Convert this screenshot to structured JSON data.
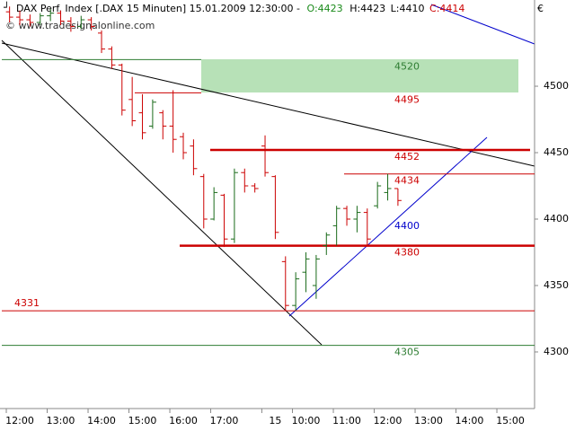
{
  "chart_data": {
    "type": "ohlc",
    "title": "DAX Perf. Index [.DAX  15 Minuten] 15.01.2009 12:30:00 -",
    "quote": {
      "open": "O:4423",
      "high": "H:4423",
      "low": "L:4410",
      "close": "C:4414"
    },
    "watermark": "© www.tradesignalonline.com",
    "currency": "€",
    "x": [
      -1,
      0,
      1,
      2,
      3,
      4,
      5,
      6,
      7,
      8,
      9,
      10,
      11,
      12,
      13,
      14,
      15,
      16,
      17,
      18,
      19,
      20,
      21,
      22,
      23,
      24,
      25,
      26,
      27,
      28,
      29,
      30,
      31,
      32,
      33,
      34,
      35,
      36,
      37
    ],
    "open": [
      4556,
      4552,
      4550,
      4548,
      4553,
      4555,
      4549,
      4545,
      4550,
      4540,
      4528,
      4516,
      4490,
      4480,
      4470,
      4480,
      4470,
      4462,
      4455,
      4432,
      4400,
      4418,
      4385,
      4435,
      4425,
      4455,
      4432,
      4368,
      4335,
      4360,
      4350,
      4380,
      4395,
      4408,
      4400,
      4405,
      4410,
      4420,
      4423
    ],
    "high": [
      4560,
      4557,
      4554,
      4555,
      4558,
      4557,
      4552,
      4553,
      4552,
      4542,
      4530,
      4517,
      4507,
      4494,
      4490,
      4482,
      4497,
      4465,
      4460,
      4434,
      4424,
      4419,
      4438,
      4438,
      4427,
      4463,
      4433,
      4372,
      4360,
      4375,
      4373,
      4390,
      4410,
      4410,
      4410,
      4408,
      4428,
      4434,
      4423
    ],
    "low": [
      4548,
      4546,
      4545,
      4546,
      4549,
      4546,
      4541,
      4543,
      4542,
      4525,
      4513,
      4478,
      4470,
      4460,
      4468,
      4460,
      4450,
      4445,
      4433,
      4393,
      4399,
      4379,
      4382,
      4420,
      4420,
      4432,
      4385,
      4331,
      4331,
      4345,
      4340,
      4373,
      4380,
      4395,
      4390,
      4380,
      4408,
      4414,
      4410
    ],
    "close": [
      4552,
      4550,
      4548,
      4553,
      4555,
      4549,
      4545,
      4550,
      4545,
      4528,
      4516,
      4482,
      4474,
      4465,
      4488,
      4470,
      4460,
      4450,
      4438,
      4400,
      4420,
      4385,
      4435,
      4425,
      4423,
      4435,
      4390,
      4335,
      4355,
      4370,
      4370,
      4388,
      4408,
      4400,
      4405,
      4385,
      4425,
      4423,
      4414
    ],
    "up_color": "#1a6b1a",
    "down_color": "#cc0000",
    "xlim": [
      -1.76,
      50.37
    ],
    "xticks": [
      {
        "value": 0,
        "label": "12:00"
      },
      {
        "value": 4,
        "label": "13:00"
      },
      {
        "value": 8,
        "label": "14:00"
      },
      {
        "value": 12,
        "label": "15:00"
      },
      {
        "value": 16,
        "label": "16:00"
      },
      {
        "value": 20,
        "label": "17:00"
      },
      {
        "value": 25,
        "label": "15"
      },
      {
        "value": 28,
        "label": "10:00"
      },
      {
        "value": 32,
        "label": "11:00"
      },
      {
        "value": 36,
        "label": "12:00"
      },
      {
        "value": 40,
        "label": "13:00"
      },
      {
        "value": 44,
        "label": "14:00"
      },
      {
        "value": 48,
        "label": "15:00"
      }
    ],
    "ylim": [
      4257.4,
      4564.9
    ],
    "yticks": [
      4300,
      4350,
      4400,
      4450,
      4500
    ],
    "levels": [
      {
        "value": 4520,
        "color": "#2e7d32"
      },
      {
        "value": 4495,
        "color": "#cc0000"
      },
      {
        "value": 4452,
        "color": "#cc0000"
      },
      {
        "value": 4434,
        "color": "#cc0000"
      },
      {
        "value": 4400,
        "color": "#0000cc"
      },
      {
        "value": 4380,
        "color": "#cc0000"
      },
      {
        "value": 4331,
        "color": "#cc0000"
      },
      {
        "value": 4305,
        "color": "#2e7d32"
      }
    ]
  }
}
